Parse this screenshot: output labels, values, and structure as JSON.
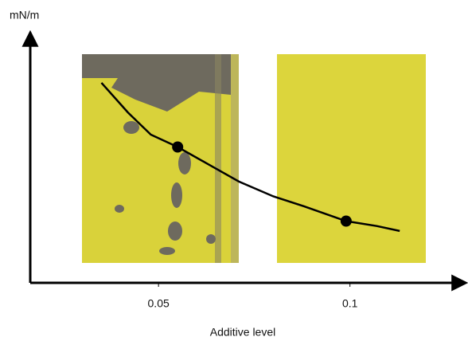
{
  "chart_data": {
    "type": "line",
    "y_label": "mN/m",
    "x_label": "Additive level",
    "xlim": [
      0.0165,
      0.13
    ],
    "xticks": [
      0.05,
      0.1
    ],
    "ylim": [
      0,
      10
    ],
    "series": [
      {
        "color": "#000000",
        "line": true,
        "markers": false,
        "x": [
          0.0351,
          0.042,
          0.048,
          0.055,
          0.063,
          0.071,
          0.08,
          0.088,
          0.099,
          0.107,
          0.113
        ],
        "values": [
          8.1,
          6.9,
          6.0,
          5.5,
          4.8,
          4.1,
          3.5,
          3.1,
          2.5,
          2.3,
          2.1
        ]
      },
      {
        "color": "#000000",
        "line": false,
        "markers": true,
        "x": [
          0.055,
          0.099
        ],
        "values": [
          5.5,
          2.5
        ]
      }
    ]
  }
}
